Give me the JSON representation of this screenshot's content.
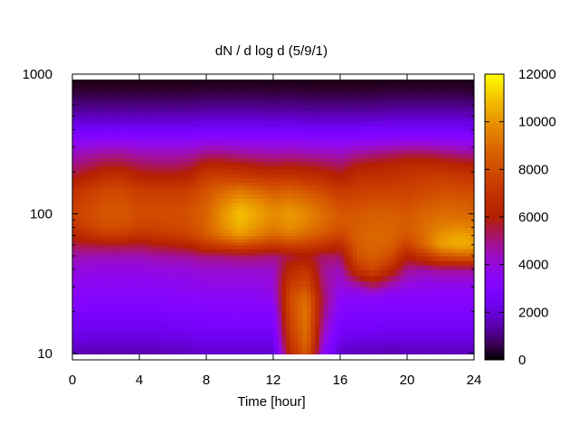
{
  "chart_data": {
    "type": "heatmap",
    "title": "dN / d log d (5/9/1)",
    "xlabel": "Time [hour]",
    "ylabel": "",
    "xlim": [
      0,
      24
    ],
    "ylim": [
      9,
      1000
    ],
    "yscale": "log",
    "x_ticks": [
      "0",
      "4",
      "8",
      "12",
      "16",
      "20",
      "24"
    ],
    "y_ticks": [
      "10",
      "100",
      "1000"
    ],
    "colorbar": {
      "range": [
        0,
        12000
      ],
      "ticks": [
        "0",
        "2000",
        "4000",
        "6000",
        "8000",
        "10000",
        "12000"
      ],
      "palette": "gnuplot-pm3d-black-blue-red-yellow"
    },
    "grid": false,
    "x_hours": [
      0,
      1,
      2,
      3,
      4,
      5,
      6,
      7,
      8,
      9,
      10,
      11,
      12,
      13,
      14,
      15,
      16,
      17,
      18,
      19,
      20,
      21,
      22,
      23,
      24
    ],
    "y_diameters": [
      9,
      10,
      12,
      15,
      20,
      25,
      30,
      40,
      50,
      60,
      70,
      80,
      100,
      120,
      150,
      180,
      220,
      270,
      330,
      400,
      500,
      650,
      800,
      1000
    ],
    "values": [
      [
        200,
        200,
        200,
        200,
        200,
        200,
        200,
        200,
        200,
        200,
        200,
        200,
        200,
        200,
        200,
        200,
        200,
        200,
        200,
        200,
        200,
        200,
        200,
        200,
        200
      ],
      [
        1500,
        1400,
        1400,
        1400,
        1400,
        1400,
        1500,
        1500,
        1800,
        1700,
        1700,
        1700,
        1700,
        6500,
        8500,
        3500,
        1600,
        1500,
        1500,
        1400,
        1500,
        1500,
        1500,
        1500,
        1500
      ],
      [
        2000,
        1900,
        1900,
        1900,
        1900,
        1900,
        2000,
        2000,
        2200,
        2200,
        2200,
        2200,
        2200,
        7000,
        9000,
        4000,
        2200,
        2000,
        2000,
        1900,
        2000,
        2000,
        2000,
        2000,
        2000
      ],
      [
        2400,
        2300,
        2300,
        2300,
        2300,
        2300,
        2400,
        2400,
        2600,
        2600,
        2600,
        2600,
        2600,
        7500,
        9200,
        4500,
        2600,
        2500,
        2500,
        2400,
        2400,
        2400,
        2400,
        2400,
        2400
      ],
      [
        2900,
        2800,
        2800,
        2800,
        2800,
        2800,
        2900,
        2900,
        3100,
        3100,
        3100,
        3100,
        3100,
        7800,
        9400,
        5000,
        3100,
        3000,
        3000,
        2900,
        2900,
        2900,
        2900,
        2900,
        2900
      ],
      [
        3300,
        3200,
        3200,
        3200,
        3200,
        3200,
        3300,
        3300,
        3500,
        3500,
        3500,
        3500,
        3600,
        8000,
        9000,
        5200,
        3500,
        3400,
        3400,
        3300,
        3300,
        3300,
        3300,
        3300,
        3300
      ],
      [
        3600,
        3500,
        3500,
        3500,
        3500,
        3500,
        3600,
        3600,
        3800,
        3800,
        3800,
        3800,
        4000,
        7500,
        8200,
        5000,
        3900,
        4200,
        5000,
        4200,
        3800,
        3600,
        3600,
        3600,
        3600
      ],
      [
        4000,
        3900,
        3900,
        3900,
        3900,
        3900,
        4000,
        4000,
        4200,
        4200,
        4200,
        4200,
        4200,
        6500,
        7000,
        4800,
        4400,
        7000,
        7800,
        6500,
        4800,
        4600,
        4800,
        4800,
        4800
      ],
      [
        4600,
        4500,
        4500,
        4500,
        4500,
        4600,
        4700,
        4800,
        5000,
        5000,
        5200,
        5200,
        5000,
        5500,
        5800,
        5200,
        5200,
        8200,
        8600,
        8000,
        6200,
        7000,
        8200,
        8600,
        8600
      ],
      [
        5400,
        5500,
        5600,
        5600,
        5500,
        5800,
        6000,
        6200,
        7200,
        7600,
        8000,
        7600,
        7200,
        7600,
        7500,
        7000,
        6500,
        8500,
        8800,
        8600,
        7600,
        8800,
        10200,
        10600,
        10400
      ],
      [
        6200,
        6800,
        7200,
        7200,
        6800,
        7000,
        7300,
        7600,
        8400,
        9200,
        10000,
        9400,
        8800,
        9200,
        8800,
        8200,
        7600,
        8600,
        8900,
        8800,
        8200,
        9000,
        10000,
        10400,
        10200
      ],
      [
        7000,
        7600,
        8000,
        8000,
        7600,
        7700,
        7800,
        8000,
        8700,
        9800,
        10600,
        10000,
        9400,
        9800,
        9400,
        8800,
        8200,
        8600,
        8800,
        8800,
        8500,
        9000,
        9600,
        9800,
        9600
      ],
      [
        7600,
        8000,
        8400,
        8400,
        8000,
        8000,
        8000,
        8200,
        8800,
        10000,
        11000,
        10400,
        9800,
        10200,
        9800,
        9000,
        8400,
        8400,
        8600,
        8600,
        8400,
        8800,
        9000,
        9000,
        8800
      ],
      [
        7400,
        7800,
        8200,
        8200,
        7800,
        7800,
        7800,
        8000,
        8600,
        9600,
        10400,
        10000,
        9400,
        9600,
        9200,
        8600,
        8000,
        8000,
        8200,
        8200,
        8000,
        8400,
        8600,
        8600,
        8400
      ],
      [
        6800,
        7400,
        7800,
        7800,
        7400,
        7300,
        7300,
        7500,
        8200,
        8800,
        9200,
        8800,
        8400,
        8600,
        8200,
        7800,
        7200,
        7400,
        7600,
        7600,
        7600,
        7800,
        8000,
        8000,
        7800
      ],
      [
        5800,
        6400,
        7000,
        7000,
        6400,
        6300,
        6300,
        6500,
        7600,
        7800,
        7600,
        7400,
        7200,
        7400,
        7000,
        6800,
        6200,
        6800,
        7000,
        7000,
        7200,
        7400,
        7600,
        7400,
        7200
      ],
      [
        5000,
        5400,
        5800,
        5800,
        5400,
        5300,
        5300,
        5500,
        6400,
        6400,
        6200,
        6000,
        5800,
        6000,
        5800,
        5600,
        5300,
        6000,
        6200,
        6400,
        6600,
        6800,
        6600,
        6400,
        6200
      ],
      [
        4400,
        4600,
        4800,
        4800,
        4600,
        4500,
        4500,
        4600,
        5000,
        5000,
        4800,
        4700,
        4600,
        4700,
        4600,
        4500,
        4400,
        4800,
        5000,
        5200,
        5400,
        5400,
        5200,
        5000,
        4800
      ],
      [
        3600,
        3600,
        3700,
        3700,
        3600,
        3600,
        3600,
        3600,
        3800,
        3800,
        3700,
        3700,
        3600,
        3700,
        3600,
        3600,
        3500,
        3600,
        3700,
        3800,
        3900,
        3900,
        3800,
        3700,
        3600
      ],
      [
        2600,
        2600,
        2600,
        2600,
        2600,
        2600,
        2600,
        2600,
        2700,
        2700,
        2700,
        2700,
        2600,
        2700,
        2600,
        2600,
        2600,
        2600,
        2700,
        2700,
        2700,
        2700,
        2700,
        2700,
        2600
      ],
      [
        1600,
        1600,
        1600,
        1600,
        1600,
        1600,
        1600,
        1600,
        1700,
        1700,
        1700,
        1700,
        1600,
        1700,
        1600,
        1600,
        1600,
        1600,
        1600,
        1700,
        1700,
        1700,
        1700,
        1700,
        1600
      ],
      [
        800,
        800,
        800,
        800,
        800,
        800,
        800,
        800,
        850,
        850,
        850,
        850,
        800,
        850,
        800,
        800,
        800,
        800,
        800,
        850,
        850,
        850,
        850,
        850,
        800
      ],
      [
        300,
        300,
        300,
        300,
        300,
        300,
        300,
        300,
        320,
        320,
        320,
        320,
        300,
        320,
        300,
        300,
        300,
        300,
        300,
        320,
        320,
        320,
        320,
        320,
        300
      ],
      [
        100,
        100,
        100,
        100,
        100,
        100,
        100,
        100,
        100,
        100,
        100,
        100,
        100,
        100,
        100,
        100,
        100,
        100,
        100,
        100,
        100,
        100,
        100,
        100,
        100
      ]
    ]
  }
}
